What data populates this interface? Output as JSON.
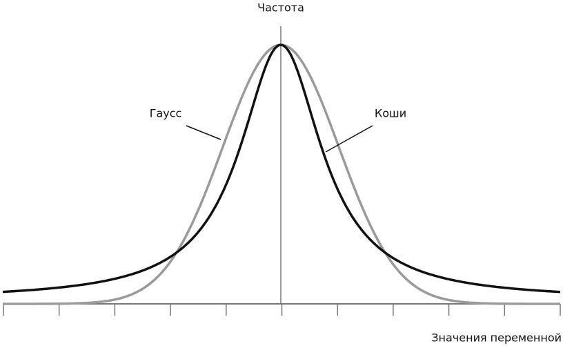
{
  "axes": {
    "y_label": "Частота",
    "x_label": "Значения переменной"
  },
  "curves": {
    "gauss": "Гаусс",
    "cauchy": "Коши"
  }
}
